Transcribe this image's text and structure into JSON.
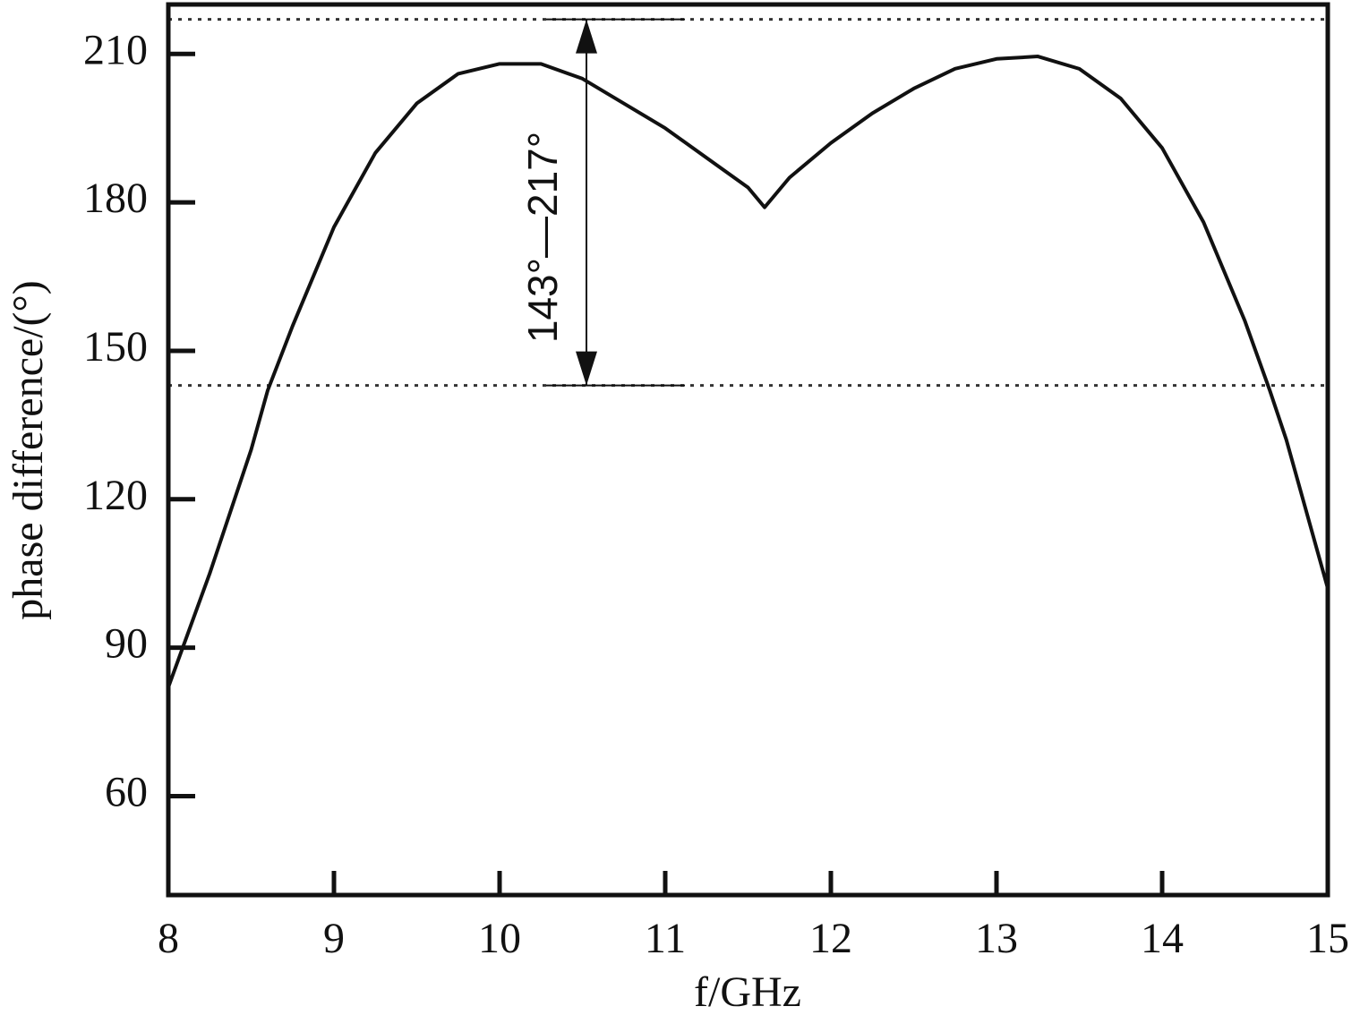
{
  "chart_data": {
    "type": "line",
    "x_label": "f/GHz",
    "y_label": "phase difference/(°)",
    "x": [
      8.0,
      8.25,
      8.5,
      8.6,
      8.75,
      9.0,
      9.25,
      9.5,
      9.75,
      10.0,
      10.25,
      10.5,
      10.75,
      11.0,
      11.25,
      11.5,
      11.6,
      11.75,
      12.0,
      12.25,
      12.5,
      12.75,
      13.0,
      13.25,
      13.5,
      13.75,
      14.0,
      14.25,
      14.5,
      14.65,
      14.75,
      15.0
    ],
    "series": [
      {
        "color": "#111111",
        "values": [
          82,
          105,
          130,
          142,
          155,
          175,
          190,
          200,
          206,
          208,
          208,
          205,
          200,
          195,
          189,
          183,
          179,
          185,
          192,
          198,
          203,
          207,
          209,
          209.5,
          207,
          201,
          191,
          176,
          156,
          142,
          132,
          102
        ]
      }
    ],
    "xlim": [
      8,
      15
    ],
    "xticks": [
      8,
      9,
      10,
      11,
      12,
      13,
      14,
      15
    ],
    "ylim": [
      40,
      220
    ],
    "yticks": [
      60,
      90,
      120,
      150,
      180,
      210
    ],
    "hlines": [
      143,
      217
    ],
    "annotation": "143°—217°"
  }
}
